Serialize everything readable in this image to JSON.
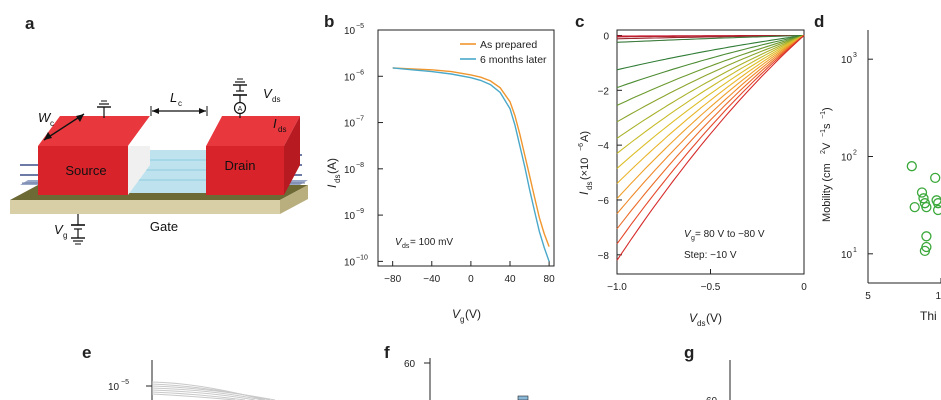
{
  "panels": {
    "a": {
      "letter": "a",
      "source_label": "Source",
      "drain_label": "Drain",
      "gate_label": "Gate",
      "wc_label": "W",
      "wc_sub": "c",
      "lc_label": "L",
      "lc_sub": "c",
      "vds_label": "V",
      "vds_sub": "ds",
      "ids_label": "I",
      "ids_sub": "ds",
      "vg_label": "V",
      "vg_sub": "g",
      "ammeter_label": "A"
    },
    "b": {
      "letter": "b"
    },
    "c": {
      "letter": "c"
    },
    "d": {
      "letter": "d"
    },
    "e": {
      "letter": "e"
    },
    "f": {
      "letter": "f"
    },
    "g": {
      "letter": "g"
    }
  },
  "chart_data": [
    {
      "id": "b",
      "type": "line",
      "title": "",
      "xlabel_main": "V",
      "xlabel_sub": "g",
      "xlabel_unit": " (V)",
      "ylabel_main": "I",
      "ylabel_sub": "ds",
      "ylabel_unit": " (A)",
      "xscale": "linear",
      "yscale": "log",
      "xlim": [
        -95,
        85
      ],
      "ylim": [
        -10.1,
        -5
      ],
      "xticks": [
        -80,
        -40,
        0,
        40,
        80
      ],
      "xtick_labels": [
        "−80",
        "−40",
        "0",
        "40",
        "80"
      ],
      "yticks": [
        -5,
        -6,
        -7,
        -8,
        -9,
        -10
      ],
      "ytick_bases": [
        "10",
        "10",
        "10",
        "10",
        "10",
        "10"
      ],
      "ytick_exps": [
        "−5",
        "−6",
        "−7",
        "−8",
        "−9",
        "−10"
      ],
      "annotation_main": "V",
      "annotation_sub": "ds",
      "annotation_value": " = 100 mV",
      "series": [
        {
          "name": "As prepared",
          "color": "#f0962e",
          "x": [
            -80,
            -60,
            -40,
            -20,
            0,
            10,
            20,
            30,
            40,
            45,
            50,
            55,
            60,
            65,
            70,
            75,
            80
          ],
          "logy": [
            -5.82,
            -5.84,
            -5.86,
            -5.9,
            -5.97,
            -6.02,
            -6.1,
            -6.25,
            -6.55,
            -6.85,
            -7.25,
            -7.7,
            -8.15,
            -8.6,
            -9.05,
            -9.4,
            -9.68
          ]
        },
        {
          "name": "6 months later",
          "color": "#4aa8c9",
          "x": [
            -80,
            -60,
            -40,
            -20,
            0,
            10,
            20,
            30,
            40,
            45,
            50,
            55,
            60,
            65,
            70,
            75,
            80
          ],
          "logy": [
            -5.82,
            -5.86,
            -5.9,
            -5.95,
            -6.03,
            -6.09,
            -6.18,
            -6.35,
            -6.7,
            -7.05,
            -7.5,
            -7.95,
            -8.45,
            -8.9,
            -9.35,
            -9.7,
            -10.0
          ]
        }
      ]
    },
    {
      "id": "c",
      "type": "line",
      "title": "",
      "xlabel_main": "V",
      "xlabel_sub": "ds",
      "xlabel_unit": " (V)",
      "ylabel_main": "I",
      "ylabel_sub": "ds",
      "ylabel_unit": " (×10",
      "ylabel_exp": "−6",
      "ylabel_tail": " A)",
      "xlim": [
        -1.0,
        0
      ],
      "ylim": [
        -8.7,
        0.2
      ],
      "xticks": [
        -1.0,
        -0.5,
        0
      ],
      "xtick_labels": [
        "−1.0",
        "−0.5",
        "0"
      ],
      "yticks": [
        0,
        -2,
        -4,
        -6,
        -8
      ],
      "ytick_labels": [
        "0",
        "−2",
        "−4",
        "−6",
        "−8"
      ],
      "annotation_line1_main": "V",
      "annotation_line1_sub": "g",
      "annotation_line1_value": " = 80 V to −80 V",
      "annotation_line2": "Step: −10 V",
      "curve_shape": "I(Vds) = Isat · (a·Vds + (1−a)·Vds² ·(−1)) ... saturating toward Vds=0",
      "series": [
        {
          "name": "80 V",
          "id_at_minus1": -0.02,
          "color": "#c8102e"
        },
        {
          "name": "70 V",
          "id_at_minus1": -0.05,
          "color": "#b8232e"
        },
        {
          "name": "60 V",
          "id_at_minus1": -0.12,
          "color": "#9a2a32"
        },
        {
          "name": "50 V",
          "id_at_minus1": -0.25,
          "color": "#3b7a3a"
        },
        {
          "name": "40 V",
          "id_at_minus1": -1.25,
          "color": "#2f7c35"
        },
        {
          "name": "30 V",
          "id_at_minus1": -1.9,
          "color": "#4c8c33"
        },
        {
          "name": "20 V",
          "id_at_minus1": -2.55,
          "color": "#6c9a2f"
        },
        {
          "name": "10 V",
          "id_at_minus1": -3.15,
          "color": "#8aa52d"
        },
        {
          "name": "0 V",
          "id_at_minus1": -3.75,
          "color": "#a8b22b"
        },
        {
          "name": "−10 V",
          "id_at_minus1": -4.3,
          "color": "#c7bb2a"
        },
        {
          "name": "−20 V",
          "id_at_minus1": -4.85,
          "color": "#dcbf2a"
        },
        {
          "name": "−30 V",
          "id_at_minus1": -5.4,
          "color": "#e9b52a"
        },
        {
          "name": "−40 V",
          "id_at_minus1": -5.95,
          "color": "#efa02a"
        },
        {
          "name": "−50 V",
          "id_at_minus1": -6.5,
          "color": "#f0882a"
        },
        {
          "name": "−60 V",
          "id_at_minus1": -7.05,
          "color": "#ec6c2a"
        },
        {
          "name": "−70 V",
          "id_at_minus1": -7.6,
          "color": "#e4482a"
        },
        {
          "name": "−80 V",
          "id_at_minus1": -8.2,
          "color": "#d62a2a"
        }
      ]
    },
    {
      "id": "d",
      "type": "scatter",
      "ylabel": "Mobility (cm",
      "ylabel_exp1": "2",
      "ylabel_mid": " V",
      "ylabel_exp2": "−1",
      "ylabel_mid2": " s",
      "ylabel_exp3": "−1",
      "ylabel_tail": ")",
      "xlabel_visible": "Thi",
      "yscale": "log",
      "xlim": [
        5,
        13
      ],
      "ylim": [
        0.7,
        3.3
      ],
      "xticks": [
        5,
        10
      ],
      "xtick_labels": [
        "5",
        "10"
      ],
      "ytick_exps": [
        "3",
        "2",
        "1"
      ],
      "ytick_values": [
        3,
        2,
        1
      ],
      "ytick_bases": [
        "10",
        "10",
        "10"
      ],
      "marker_color": "#3aa83a",
      "points": [
        {
          "x": 8.0,
          "logy": 1.9
        },
        {
          "x": 8.2,
          "logy": 1.48
        },
        {
          "x": 8.7,
          "logy": 1.63
        },
        {
          "x": 8.8,
          "logy": 1.57
        },
        {
          "x": 8.9,
          "logy": 1.52
        },
        {
          "x": 9.0,
          "logy": 1.48
        },
        {
          "x": 9.0,
          "logy": 1.18
        },
        {
          "x": 9.0,
          "logy": 1.07
        },
        {
          "x": 8.9,
          "logy": 1.03
        },
        {
          "x": 9.6,
          "logy": 1.78
        },
        {
          "x": 9.7,
          "logy": 1.55
        },
        {
          "x": 9.8,
          "logy": 1.52
        },
        {
          "x": 9.8,
          "logy": 1.45
        },
        {
          "x": 11.0,
          "logy": 2.27
        },
        {
          "x": 11.5,
          "logy": 2.91
        },
        {
          "x": 12.6,
          "logy": 2.11
        }
      ]
    },
    {
      "id": "e",
      "type": "line",
      "ytick_base": "10",
      "ytick_exp": "−5",
      "note": "panel cut off at bottom of image"
    },
    {
      "id": "f",
      "type": "bar",
      "ytick_label": "60",
      "note": "panel cut off at bottom of image"
    },
    {
      "id": "g",
      "type": "line",
      "ytick_label": "60",
      "note": "panel cut off at bottom of image"
    }
  ]
}
